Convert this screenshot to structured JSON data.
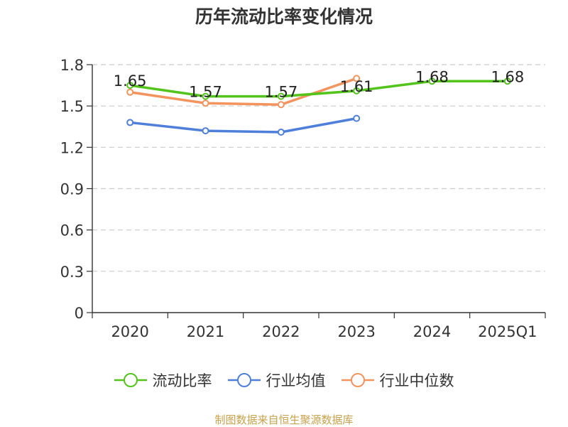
{
  "title": "历年流动比率变化情况",
  "source": "制图数据来自恒生聚源数据库",
  "chart_data": {
    "type": "line",
    "categories": [
      "2020",
      "2021",
      "2022",
      "2023",
      "2024",
      "2025Q1"
    ],
    "ylim": [
      0,
      1.8
    ],
    "yticks": [
      "0",
      "0.3",
      "0.6",
      "0.9",
      "1.2",
      "1.5",
      "1.8"
    ],
    "grid": true,
    "legend_position": "bottom",
    "series": [
      {
        "name": "流动比率",
        "color": "#52c41a",
        "show_labels": true,
        "values": [
          1.65,
          1.57,
          1.57,
          1.61,
          1.68,
          1.68
        ],
        "labels": [
          "1.65",
          "1.57",
          "1.57",
          "1.61",
          "1.68",
          "1.68"
        ]
      },
      {
        "name": "行业均值",
        "color": "#4e7fdb",
        "show_labels": false,
        "values": [
          1.38,
          1.32,
          1.31,
          1.41,
          null,
          null
        ]
      },
      {
        "name": "行业中位数",
        "color": "#f5935d",
        "show_labels": false,
        "values": [
          1.6,
          1.52,
          1.51,
          1.7,
          null,
          null
        ]
      }
    ]
  }
}
